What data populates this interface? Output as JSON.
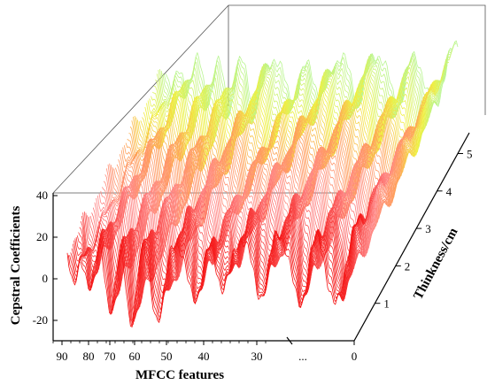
{
  "chart_data": {
    "type": "line",
    "title": "",
    "xlabel": "MFCC features",
    "ylabel": "Cepstral Coefficients",
    "zlabel": "Thinkness/cm",
    "x_ticks": [
      "90",
      "80",
      "70",
      "60",
      "50",
      "40",
      "30",
      "...",
      "0"
    ],
    "y_ticks": [
      "-20",
      "0",
      "20",
      "40"
    ],
    "z_ticks": [
      "1",
      "2",
      "3",
      "4",
      "5"
    ],
    "ylim": [
      -28,
      40
    ],
    "zlim": [
      0,
      5.5
    ],
    "grid": false,
    "colors": {
      "near_red": "#f20000",
      "mid_pink": "#ff8888",
      "orange": "#ff9f5a",
      "yellow": "#f0f040",
      "far_green": "#b8f590"
    },
    "series": [
      {
        "z": 0.25,
        "dips_x": [
          95,
          90,
          83,
          76,
          67,
          55,
          45,
          33,
          20,
          8
        ],
        "dips_y": [
          -3,
          -8,
          -20,
          -26,
          -22,
          -14,
          -8,
          -12,
          -16,
          -18
        ]
      },
      {
        "z": 1.0,
        "dips_x": [
          95,
          90,
          83,
          76,
          67,
          55,
          45,
          33,
          20,
          8
        ],
        "dips_y": [
          -2,
          -6,
          -16,
          -22,
          -18,
          -12,
          -7,
          -10,
          -14,
          -16
        ]
      },
      {
        "z": 2.0,
        "dips_x": [
          95,
          90,
          83,
          76,
          67,
          55,
          45,
          33,
          20,
          8
        ],
        "dips_y": [
          0,
          -4,
          -12,
          -18,
          -14,
          -10,
          -6,
          -8,
          -12,
          -14
        ]
      },
      {
        "z": 3.0,
        "dips_x": [
          95,
          90,
          83,
          76,
          67,
          55,
          45,
          33,
          20,
          8
        ],
        "dips_y": [
          2,
          -2,
          -8,
          -14,
          -11,
          -8,
          -4,
          -6,
          -10,
          -12
        ]
      },
      {
        "z": 4.0,
        "dips_x": [
          95,
          90,
          83,
          76,
          67,
          55,
          45,
          33,
          20,
          8
        ],
        "dips_y": [
          3,
          0,
          -6,
          -10,
          -8,
          -6,
          -3,
          -4,
          -8,
          -10
        ]
      },
      {
        "z": 5.0,
        "dips_x": [
          95,
          90,
          83,
          76,
          67,
          55,
          45,
          33,
          20,
          8
        ],
        "dips_y": [
          4,
          2,
          -4,
          -8,
          -6,
          -4,
          -2,
          -3,
          -6,
          -8
        ]
      }
    ]
  }
}
